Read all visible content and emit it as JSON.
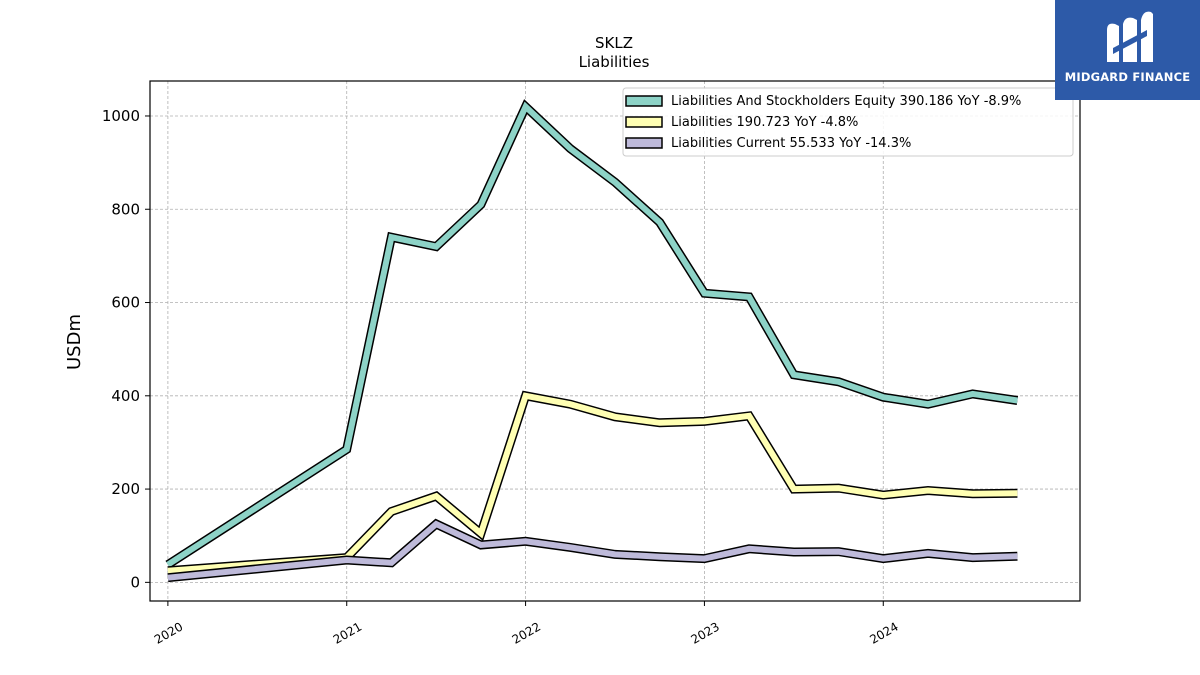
{
  "chart_data": {
    "type": "line",
    "title": "SKLZ",
    "subtitle": "Liabilities",
    "xlabel": "",
    "ylabel": "USDm",
    "xlim": [
      2019.9,
      2025.1
    ],
    "ylim": [
      -40,
      1075
    ],
    "x_ticks": [
      {
        "value": 2020,
        "label": "2020"
      },
      {
        "value": 2021,
        "label": "2021"
      },
      {
        "value": 2022,
        "label": "2022"
      },
      {
        "value": 2023,
        "label": "2023"
      },
      {
        "value": 2024,
        "label": "2024"
      }
    ],
    "y_ticks": [
      {
        "value": 0,
        "label": "0"
      },
      {
        "value": 200,
        "label": "200"
      },
      {
        "value": 400,
        "label": "400"
      },
      {
        "value": 600,
        "label": "600"
      },
      {
        "value": 800,
        "label": "800"
      },
      {
        "value": 1000,
        "label": "1000"
      }
    ],
    "grid": true,
    "legend_position": "top-right",
    "x": [
      2020.0,
      2021.0,
      2021.25,
      2021.5,
      2021.75,
      2022.0,
      2022.25,
      2022.5,
      2022.75,
      2023.0,
      2023.25,
      2023.5,
      2023.75,
      2024.0,
      2024.25,
      2024.5,
      2024.75
    ],
    "series": [
      {
        "name": "Liabilities And Stockholders Equity",
        "legend_label": "Liabilities And Stockholders Equity  390.186 YoY -8.9%",
        "color": "#8dd3c7",
        "values": [
          38,
          285,
          740,
          720,
          810,
          1020,
          930,
          858,
          772,
          620,
          612,
          445,
          430,
          397,
          382,
          404,
          390
        ]
      },
      {
        "name": "Liabilities",
        "legend_label": "Liabilities  190.723 YoY -4.8%",
        "color": "#ffffb3",
        "values": [
          25,
          53,
          152,
          185,
          105,
          400,
          382,
          355,
          342,
          345,
          357,
          200,
          202,
          187,
          197,
          190,
          191
        ]
      },
      {
        "name": "Liabilities Current",
        "legend_label": "Liabilities Current  55.533 YoY -14.3%",
        "color": "#bebada",
        "values": [
          10,
          48,
          42,
          125,
          80,
          88,
          75,
          60,
          55,
          51,
          72,
          65,
          66,
          51,
          62,
          53,
          56
        ]
      }
    ]
  },
  "logo": {
    "text": "MIDGARD FINANCE"
  }
}
